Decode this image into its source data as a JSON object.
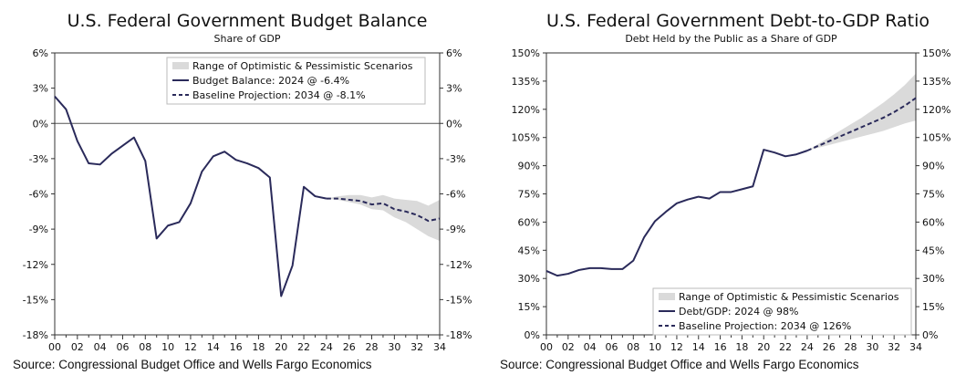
{
  "chart_data": [
    {
      "type": "line",
      "title": "U.S. Federal Government Budget Balance",
      "subtitle": "Share of GDP",
      "ylim": [
        -18,
        6
      ],
      "yticks": [
        6,
        3,
        0,
        -3,
        -6,
        -9,
        -12,
        -15,
        -18
      ],
      "ytick_labels": [
        "6%",
        "3%",
        "0%",
        "-3%",
        "-6%",
        "-9%",
        "-12%",
        "-15%",
        "-18%"
      ],
      "xlim": [
        0,
        34
      ],
      "xticks": [
        0,
        2,
        4,
        6,
        8,
        10,
        12,
        14,
        16,
        18,
        20,
        22,
        24,
        26,
        28,
        30,
        32,
        34
      ],
      "xtick_labels": [
        "00",
        "02",
        "04",
        "06",
        "08",
        "10",
        "12",
        "14",
        "16",
        "18",
        "20",
        "22",
        "24",
        "26",
        "28",
        "30",
        "32",
        "34"
      ],
      "zero_line": true,
      "grid": false,
      "legend_position": "top-right",
      "legend": [
        "Range of Optimistic & Pessimistic Scenarios",
        "Budget Balance: 2024 @ -6.4%",
        "Baseline Projection: 2034 @ -8.1%"
      ],
      "series": [
        {
          "name": "Budget Balance: 2024 @ -6.4%",
          "style": "solid",
          "x": [
            0,
            1,
            2,
            3,
            4,
            5,
            6,
            7,
            8,
            9,
            10,
            11,
            12,
            13,
            14,
            15,
            16,
            17,
            18,
            19,
            20,
            21,
            22,
            23,
            24
          ],
          "y": [
            2.3,
            1.2,
            -1.5,
            -3.4,
            -3.5,
            -2.6,
            -1.9,
            -1.2,
            -3.2,
            -9.8,
            -8.7,
            -8.4,
            -6.8,
            -4.1,
            -2.8,
            -2.4,
            -3.1,
            -3.4,
            -3.8,
            -4.6,
            -14.7,
            -12.1,
            -5.4,
            -6.2,
            -6.4
          ]
        },
        {
          "name": "Baseline Projection: 2034 @ -8.1%",
          "style": "dashed",
          "x": [
            24,
            25,
            26,
            27,
            28,
            29,
            30,
            31,
            32,
            33,
            34
          ],
          "y": [
            -6.4,
            -6.4,
            -6.5,
            -6.6,
            -6.9,
            -6.8,
            -7.3,
            -7.5,
            -7.8,
            -8.3,
            -8.1
          ]
        },
        {
          "name": "Range of Optimistic & Pessimistic Scenarios",
          "style": "band",
          "x": [
            24,
            25,
            26,
            27,
            28,
            29,
            30,
            31,
            32,
            33,
            34
          ],
          "upper": [
            -6.4,
            -6.2,
            -6.1,
            -6.1,
            -6.3,
            -6.1,
            -6.4,
            -6.5,
            -6.6,
            -7.0,
            -6.5
          ],
          "lower": [
            -6.4,
            -6.5,
            -6.7,
            -6.9,
            -7.3,
            -7.4,
            -8.0,
            -8.4,
            -9.0,
            -9.6,
            -10.0
          ]
        }
      ]
    },
    {
      "type": "line",
      "title": "U.S. Federal Government Debt-to-GDP Ratio",
      "subtitle": "Debt Held by the Public as a Share of GDP",
      "ylim": [
        0,
        150
      ],
      "yticks": [
        150,
        135,
        120,
        105,
        90,
        75,
        60,
        45,
        30,
        15,
        0
      ],
      "ytick_labels": [
        "150%",
        "135%",
        "120%",
        "105%",
        "90%",
        "75%",
        "60%",
        "45%",
        "30%",
        "15%",
        "0%"
      ],
      "xlim": [
        0,
        34
      ],
      "xticks": [
        0,
        2,
        4,
        6,
        8,
        10,
        12,
        14,
        16,
        18,
        20,
        22,
        24,
        26,
        28,
        30,
        32,
        34
      ],
      "xtick_labels": [
        "00",
        "02",
        "04",
        "06",
        "08",
        "10",
        "12",
        "14",
        "16",
        "18",
        "20",
        "22",
        "24",
        "26",
        "28",
        "30",
        "32",
        "34"
      ],
      "zero_line": false,
      "grid": false,
      "legend_position": "bottom-right",
      "legend": [
        "Range of Optimistic & Pessimistic Scenarios",
        "Debt/GDP: 2024 @ 98%",
        "Baseline Projection: 2034 @ 126%"
      ],
      "series": [
        {
          "name": "Debt/GDP: 2024 @ 98%",
          "style": "solid",
          "x": [
            0,
            1,
            2,
            3,
            4,
            5,
            6,
            7,
            8,
            9,
            10,
            11,
            12,
            13,
            14,
            15,
            16,
            17,
            18,
            19,
            20,
            21,
            22,
            23,
            24
          ],
          "y": [
            34,
            31.5,
            32.5,
            34.5,
            35.5,
            35.5,
            35,
            35,
            39.5,
            52,
            60.5,
            65.5,
            70,
            72,
            73.5,
            72.5,
            76,
            76,
            77.5,
            79,
            98.5,
            97,
            95,
            96,
            98
          ]
        },
        {
          "name": "Baseline Projection: 2034 @ 126%",
          "style": "dashed",
          "x": [
            24,
            25,
            26,
            27,
            28,
            29,
            30,
            31,
            32,
            33,
            34
          ],
          "y": [
            98,
            100.5,
            103,
            105.5,
            108,
            110.5,
            113,
            115.5,
            118.5,
            122,
            126
          ]
        },
        {
          "name": "Range of Optimistic & Pessimistic Scenarios",
          "style": "band",
          "x": [
            24,
            25,
            26,
            27,
            28,
            29,
            30,
            31,
            32,
            33,
            34
          ],
          "upper": [
            98,
            101.5,
            105,
            108.5,
            112,
            115.5,
            119.5,
            123.5,
            128,
            133,
            139
          ],
          "lower": [
            98,
            99.5,
            101,
            102.5,
            104,
            105.5,
            107,
            108.5,
            110.5,
            112.5,
            114
          ]
        }
      ]
    }
  ],
  "source": "Source: Congressional Budget Office and Wells Fargo Economics",
  "colors": {
    "line": "#2a2a5a",
    "band": "#dadada",
    "axis": "#333333",
    "zero": "#555555"
  }
}
